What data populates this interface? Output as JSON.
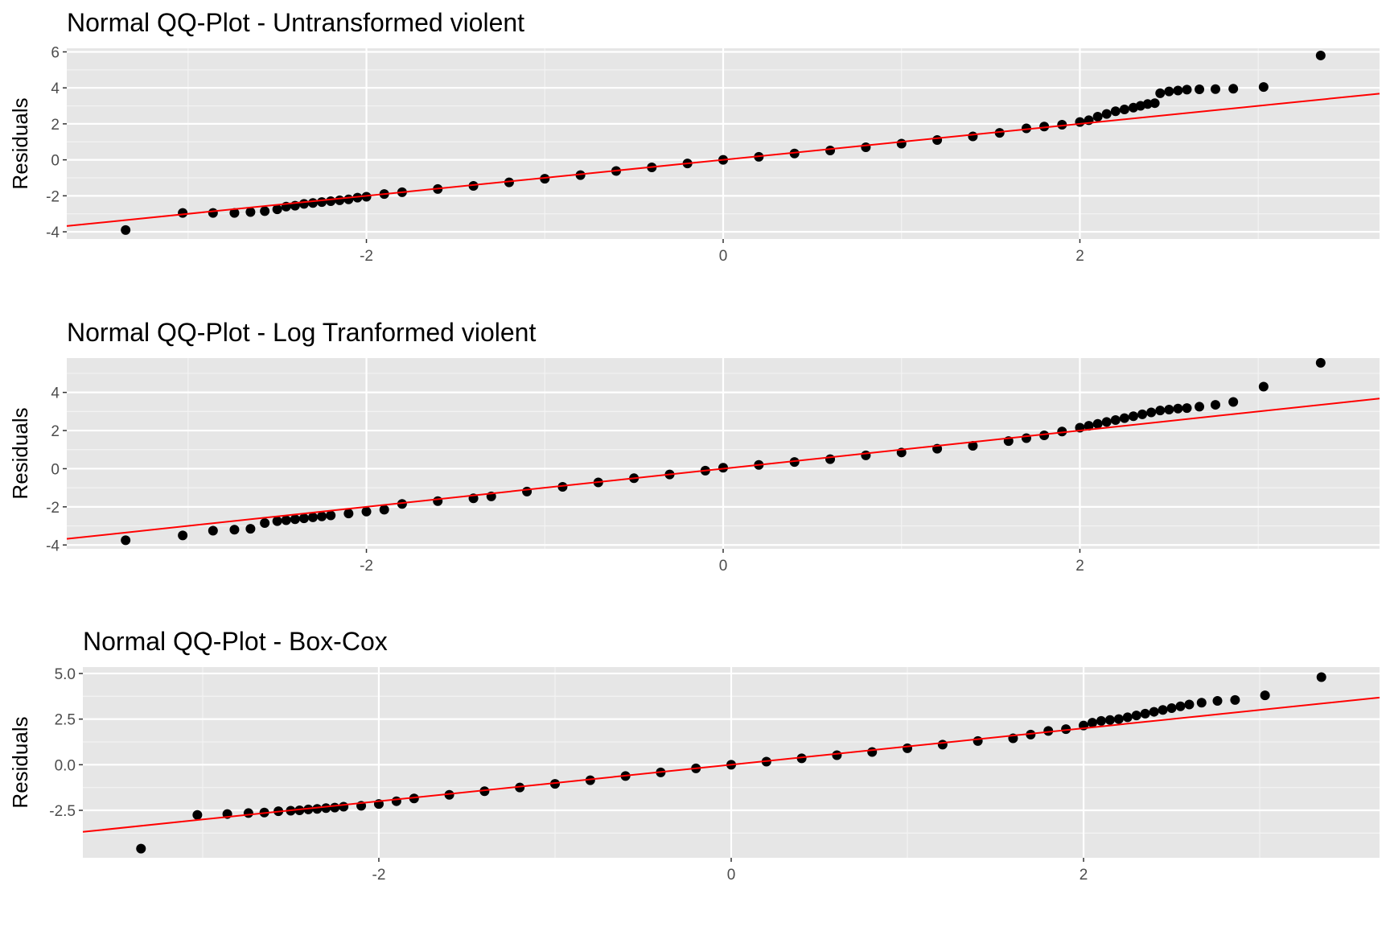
{
  "chart_data": [
    {
      "type": "scatter",
      "title": "Normal QQ-Plot - Untransformed violent",
      "xlabel": "",
      "ylabel": "Residuals",
      "xlim": [
        -3.68,
        3.68
      ],
      "ylim": [
        -4.4,
        6.2
      ],
      "x_ticks": [
        -2,
        0,
        2
      ],
      "x_tick_labels": [
        "-2",
        "0",
        "2"
      ],
      "y_ticks": [
        -4,
        -2,
        0,
        2,
        4,
        6
      ],
      "y_tick_labels": [
        "-4",
        "-2",
        "0",
        "2",
        "4",
        "6"
      ],
      "grid": true,
      "reference_line": {
        "intercept": 0.0,
        "slope": 1.0,
        "color": "#ff0000"
      },
      "points": [
        [
          -3.35,
          -3.9
        ],
        [
          -3.03,
          -2.95
        ],
        [
          -2.86,
          -2.95
        ],
        [
          -2.74,
          -2.95
        ],
        [
          -2.65,
          -2.9
        ],
        [
          -2.57,
          -2.85
        ],
        [
          -2.5,
          -2.75
        ],
        [
          -2.45,
          -2.6
        ],
        [
          -2.4,
          -2.55
        ],
        [
          -2.35,
          -2.45
        ],
        [
          -2.3,
          -2.4
        ],
        [
          -2.25,
          -2.35
        ],
        [
          -2.2,
          -2.3
        ],
        [
          -2.15,
          -2.25
        ],
        [
          -2.1,
          -2.2
        ],
        [
          -2.05,
          -2.1
        ],
        [
          -2.0,
          -2.05
        ],
        [
          -1.9,
          -1.9
        ],
        [
          -1.8,
          -1.8
        ],
        [
          -1.6,
          -1.62
        ],
        [
          -1.4,
          -1.45
        ],
        [
          -1.2,
          -1.25
        ],
        [
          -1.0,
          -1.05
        ],
        [
          -0.8,
          -0.85
        ],
        [
          -0.6,
          -0.62
        ],
        [
          -0.4,
          -0.42
        ],
        [
          -0.2,
          -0.2
        ],
        [
          0.0,
          0.0
        ],
        [
          0.2,
          0.17
        ],
        [
          0.4,
          0.35
        ],
        [
          0.6,
          0.52
        ],
        [
          0.8,
          0.7
        ],
        [
          1.0,
          0.9
        ],
        [
          1.2,
          1.1
        ],
        [
          1.4,
          1.3
        ],
        [
          1.55,
          1.5
        ],
        [
          1.7,
          1.75
        ],
        [
          1.8,
          1.85
        ],
        [
          1.9,
          1.95
        ],
        [
          2.0,
          2.1
        ],
        [
          2.05,
          2.2
        ],
        [
          2.1,
          2.4
        ],
        [
          2.15,
          2.55
        ],
        [
          2.2,
          2.7
        ],
        [
          2.25,
          2.8
        ],
        [
          2.3,
          2.9
        ],
        [
          2.34,
          3.0
        ],
        [
          2.38,
          3.1
        ],
        [
          2.42,
          3.15
        ],
        [
          2.45,
          3.7
        ],
        [
          2.5,
          3.8
        ],
        [
          2.55,
          3.85
        ],
        [
          2.6,
          3.9
        ],
        [
          2.67,
          3.92
        ],
        [
          2.76,
          3.93
        ],
        [
          2.86,
          3.95
        ],
        [
          3.03,
          4.05
        ],
        [
          3.35,
          5.8
        ]
      ]
    },
    {
      "type": "scatter",
      "title": "Normal QQ-Plot - Log Tranformed violent",
      "xlabel": "",
      "ylabel": "Residuals",
      "xlim": [
        -3.68,
        3.68
      ],
      "ylim": [
        -4.2,
        5.8
      ],
      "x_ticks": [
        -2,
        0,
        2
      ],
      "x_tick_labels": [
        "-2",
        "0",
        "2"
      ],
      "y_ticks": [
        -4,
        -2,
        0,
        2,
        4
      ],
      "y_tick_labels": [
        "-4",
        "-2",
        "0",
        "2",
        "4"
      ],
      "grid": true,
      "reference_line": {
        "intercept": 0.0,
        "slope": 1.0,
        "color": "#ff0000"
      },
      "points": [
        [
          -3.35,
          -3.75
        ],
        [
          -3.03,
          -3.5
        ],
        [
          -2.86,
          -3.25
        ],
        [
          -2.74,
          -3.2
        ],
        [
          -2.65,
          -3.15
        ],
        [
          -2.57,
          -2.85
        ],
        [
          -2.5,
          -2.75
        ],
        [
          -2.45,
          -2.7
        ],
        [
          -2.4,
          -2.65
        ],
        [
          -2.35,
          -2.6
        ],
        [
          -2.3,
          -2.55
        ],
        [
          -2.25,
          -2.5
        ],
        [
          -2.2,
          -2.45
        ],
        [
          -2.1,
          -2.35
        ],
        [
          -2.0,
          -2.25
        ],
        [
          -1.9,
          -2.15
        ],
        [
          -1.8,
          -1.85
        ],
        [
          -1.6,
          -1.7
        ],
        [
          -1.4,
          -1.55
        ],
        [
          -1.3,
          -1.45
        ],
        [
          -1.1,
          -1.2
        ],
        [
          -0.9,
          -0.95
        ],
        [
          -0.7,
          -0.72
        ],
        [
          -0.5,
          -0.5
        ],
        [
          -0.3,
          -0.3
        ],
        [
          -0.1,
          -0.1
        ],
        [
          0.0,
          0.05
        ],
        [
          0.2,
          0.2
        ],
        [
          0.4,
          0.35
        ],
        [
          0.6,
          0.5
        ],
        [
          0.8,
          0.7
        ],
        [
          1.0,
          0.85
        ],
        [
          1.2,
          1.05
        ],
        [
          1.4,
          1.2
        ],
        [
          1.6,
          1.45
        ],
        [
          1.7,
          1.6
        ],
        [
          1.8,
          1.75
        ],
        [
          1.9,
          1.95
        ],
        [
          2.0,
          2.15
        ],
        [
          2.05,
          2.25
        ],
        [
          2.1,
          2.35
        ],
        [
          2.15,
          2.45
        ],
        [
          2.2,
          2.55
        ],
        [
          2.25,
          2.65
        ],
        [
          2.3,
          2.75
        ],
        [
          2.35,
          2.85
        ],
        [
          2.4,
          2.95
        ],
        [
          2.45,
          3.05
        ],
        [
          2.5,
          3.1
        ],
        [
          2.55,
          3.15
        ],
        [
          2.6,
          3.18
        ],
        [
          2.67,
          3.25
        ],
        [
          2.76,
          3.35
        ],
        [
          2.86,
          3.5
        ],
        [
          3.03,
          4.3
        ],
        [
          3.35,
          5.55
        ]
      ]
    },
    {
      "type": "scatter",
      "title": "Normal QQ-Plot - Box-Cox",
      "xlabel": "",
      "ylabel": "Residuals",
      "xlim": [
        -3.68,
        3.68
      ],
      "ylim": [
        -5.1,
        5.35
      ],
      "x_ticks": [
        -2,
        0,
        2
      ],
      "x_tick_labels": [
        "-2",
        "0",
        "2"
      ],
      "y_ticks": [
        -2.5,
        0.0,
        2.5,
        5.0
      ],
      "y_tick_labels": [
        "-2.5",
        "0.0",
        "2.5",
        "5.0"
      ],
      "grid": true,
      "reference_line": {
        "intercept": 0.0,
        "slope": 1.0,
        "color": "#ff0000"
      },
      "points": [
        [
          -3.35,
          -4.6
        ],
        [
          -3.03,
          -2.75
        ],
        [
          -2.86,
          -2.7
        ],
        [
          -2.74,
          -2.65
        ],
        [
          -2.65,
          -2.62
        ],
        [
          -2.57,
          -2.55
        ],
        [
          -2.5,
          -2.52
        ],
        [
          -2.45,
          -2.5
        ],
        [
          -2.4,
          -2.45
        ],
        [
          -2.35,
          -2.42
        ],
        [
          -2.3,
          -2.38
        ],
        [
          -2.25,
          -2.35
        ],
        [
          -2.2,
          -2.3
        ],
        [
          -2.1,
          -2.25
        ],
        [
          -2.0,
          -2.15
        ],
        [
          -1.9,
          -2.0
        ],
        [
          -1.8,
          -1.85
        ],
        [
          -1.6,
          -1.65
        ],
        [
          -1.4,
          -1.45
        ],
        [
          -1.2,
          -1.25
        ],
        [
          -1.0,
          -1.05
        ],
        [
          -0.8,
          -0.85
        ],
        [
          -0.6,
          -0.62
        ],
        [
          -0.4,
          -0.42
        ],
        [
          -0.2,
          -0.2
        ],
        [
          0.0,
          0.0
        ],
        [
          0.2,
          0.17
        ],
        [
          0.4,
          0.35
        ],
        [
          0.6,
          0.52
        ],
        [
          0.8,
          0.7
        ],
        [
          1.0,
          0.9
        ],
        [
          1.2,
          1.1
        ],
        [
          1.4,
          1.3
        ],
        [
          1.6,
          1.45
        ],
        [
          1.7,
          1.65
        ],
        [
          1.8,
          1.85
        ],
        [
          1.9,
          1.95
        ],
        [
          2.0,
          2.15
        ],
        [
          2.05,
          2.3
        ],
        [
          2.1,
          2.4
        ],
        [
          2.15,
          2.45
        ],
        [
          2.2,
          2.5
        ],
        [
          2.25,
          2.6
        ],
        [
          2.3,
          2.7
        ],
        [
          2.35,
          2.8
        ],
        [
          2.4,
          2.9
        ],
        [
          2.45,
          3.0
        ],
        [
          2.5,
          3.1
        ],
        [
          2.55,
          3.2
        ],
        [
          2.6,
          3.3
        ],
        [
          2.67,
          3.4
        ],
        [
          2.76,
          3.5
        ],
        [
          2.86,
          3.55
        ],
        [
          3.03,
          3.8
        ],
        [
          3.35,
          4.8
        ]
      ]
    }
  ]
}
